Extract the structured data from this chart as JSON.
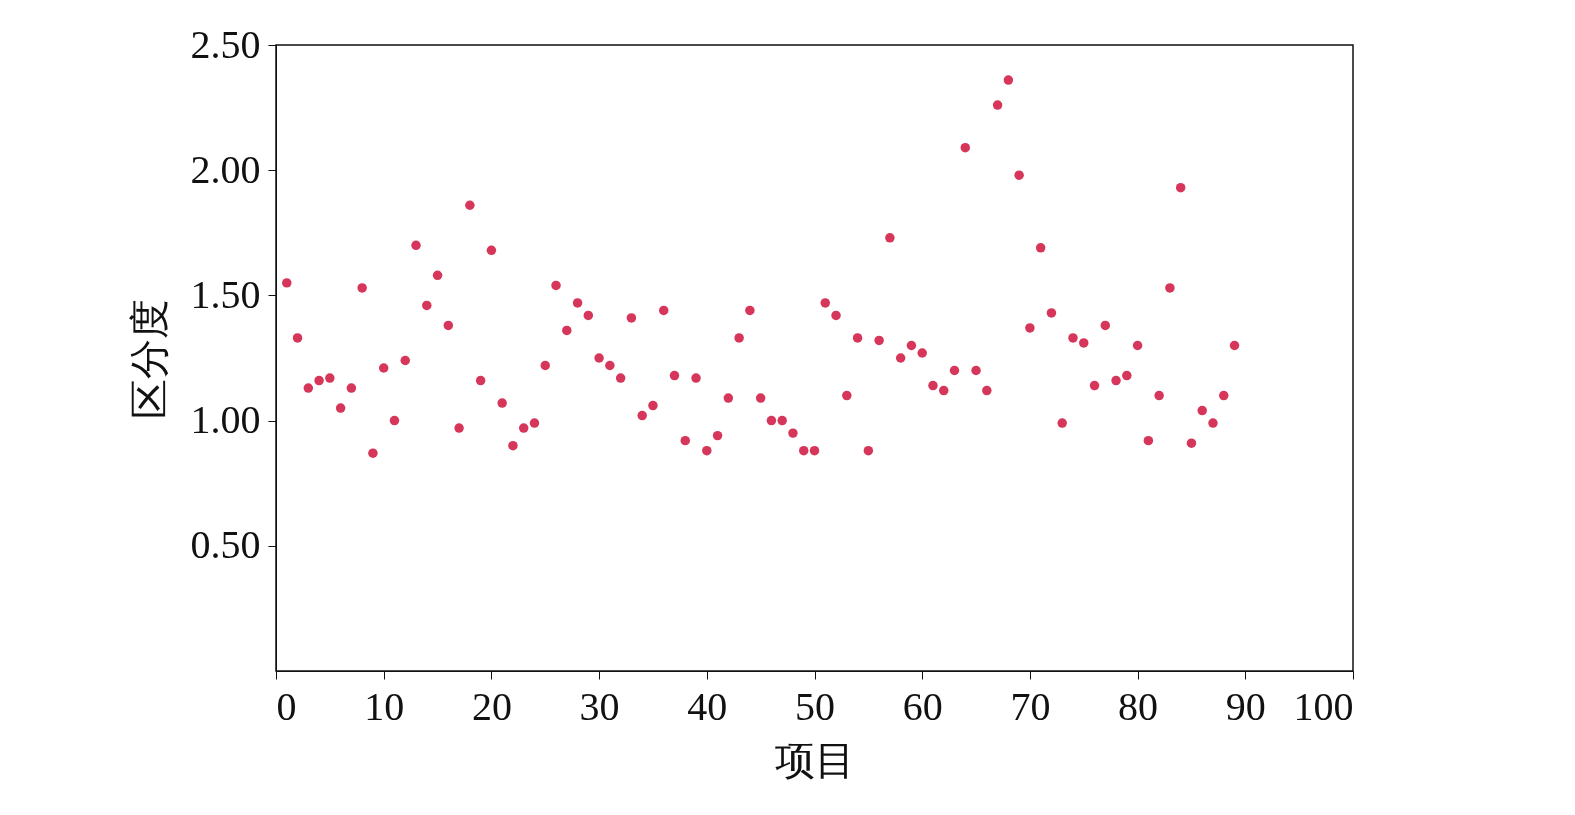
{
  "chart_data": {
    "type": "scatter",
    "xlabel": "项目",
    "ylabel": "区分度",
    "x": [
      1,
      2,
      3,
      4,
      5,
      6,
      7,
      8,
      9,
      10,
      11,
      12,
      13,
      14,
      15,
      16,
      17,
      18,
      19,
      20,
      21,
      22,
      23,
      24,
      25,
      26,
      27,
      28,
      29,
      30,
      31,
      32,
      33,
      34,
      35,
      36,
      37,
      38,
      39,
      40,
      41,
      42,
      43,
      44,
      45,
      46,
      47,
      48,
      49,
      50,
      51,
      52,
      53,
      54,
      55,
      56,
      57,
      58,
      59,
      60,
      61,
      62,
      63,
      64,
      65,
      66,
      67,
      68,
      69,
      70,
      71,
      72,
      73,
      74,
      75,
      76,
      77,
      78,
      79,
      80,
      81,
      82,
      83,
      84,
      85,
      86,
      87,
      88,
      89
    ],
    "series": [
      {
        "color": "#d6365a",
        "values": [
          1.55,
          1.33,
          1.13,
          1.16,
          1.17,
          1.05,
          1.13,
          1.53,
          0.87,
          1.21,
          1.0,
          1.24,
          1.7,
          1.46,
          1.58,
          1.38,
          0.97,
          1.86,
          1.16,
          1.68,
          1.07,
          0.9,
          0.97,
          0.99,
          1.22,
          1.54,
          1.36,
          1.47,
          1.42,
          1.25,
          1.22,
          1.17,
          1.41,
          1.02,
          1.06,
          1.44,
          1.18,
          0.92,
          1.17,
          0.88,
          0.94,
          1.09,
          1.33,
          1.44,
          1.09,
          1.0,
          1.0,
          0.95,
          0.88,
          0.88,
          1.47,
          1.42,
          1.1,
          1.33,
          0.88,
          1.32,
          1.73,
          1.25,
          1.3,
          1.27,
          1.14,
          1.12,
          1.2,
          2.09,
          1.2,
          1.12,
          2.26,
          2.36,
          1.98,
          1.37,
          1.69,
          1.43,
          0.99,
          1.33,
          1.31,
          1.14,
          1.38,
          1.16,
          1.18,
          1.3,
          0.92,
          1.1,
          1.53,
          1.93,
          0.91,
          1.04,
          0.99,
          1.1,
          1.3
        ]
      }
    ],
    "xlim": [
      0,
      100
    ],
    "xticks": [
      0,
      10,
      20,
      30,
      40,
      50,
      60,
      70,
      80,
      90,
      100
    ],
    "ylim": [
      0,
      2.5
    ],
    "yticks": [
      {
        "value": 0.5,
        "label": "0.50"
      },
      {
        "value": 1.0,
        "label": "1.00"
      },
      {
        "value": 1.5,
        "label": "1.50"
      },
      {
        "value": 2.0,
        "label": "2.00"
      },
      {
        "value": 2.5,
        "label": "2.50"
      }
    ],
    "marker": "circle",
    "grid": false,
    "legend": false
  }
}
